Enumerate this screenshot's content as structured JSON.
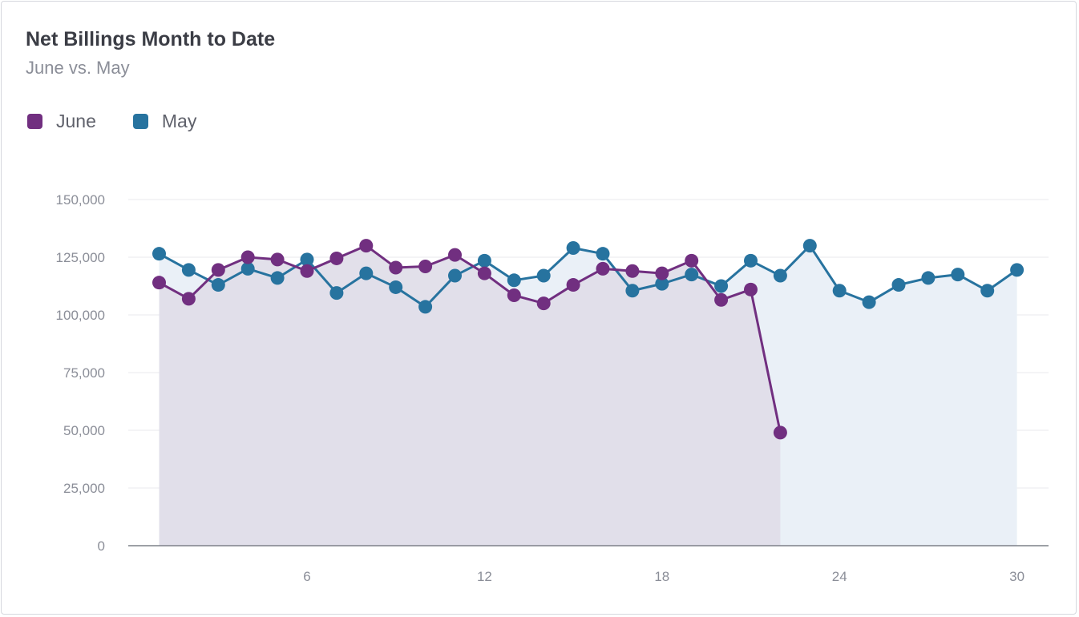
{
  "colors": {
    "june": "#712f80",
    "may": "#27739f",
    "june_fill": "#dfdde8",
    "may_fill": "#eaf0f7"
  },
  "chart_data": {
    "type": "line",
    "title": "Net Billings Month to Date",
    "subtitle": "June vs. May",
    "xlabel": "",
    "ylabel": "",
    "x_ticks": [
      6,
      12,
      18,
      24,
      30
    ],
    "y_ticks": [
      "0",
      "25,000",
      "50,000",
      "75,000",
      "100,000",
      "125,000",
      "150,000"
    ],
    "y_tick_values": [
      0,
      25000,
      50000,
      75000,
      100000,
      125000,
      150000
    ],
    "xlim": [
      0,
      31
    ],
    "ylim": [
      0,
      150000
    ],
    "grid": true,
    "legend_position": "top-left",
    "series": [
      {
        "name": "June",
        "color_key": "june",
        "x": [
          1,
          2,
          3,
          4,
          5,
          6,
          7,
          8,
          9,
          10,
          11,
          12,
          13,
          14,
          15,
          16,
          17,
          18,
          19,
          20,
          21,
          22
        ],
        "values": [
          114000,
          107000,
          119500,
          125000,
          124000,
          119000,
          124500,
          130000,
          120500,
          121000,
          126000,
          118000,
          108500,
          105000,
          113000,
          120000,
          119000,
          118000,
          123500,
          106500,
          111000,
          49000
        ]
      },
      {
        "name": "May",
        "color_key": "may",
        "x": [
          1,
          2,
          3,
          4,
          5,
          6,
          7,
          8,
          9,
          10,
          11,
          12,
          13,
          14,
          15,
          16,
          17,
          18,
          19,
          20,
          21,
          22,
          23,
          24,
          25,
          26,
          27,
          28,
          29,
          30
        ],
        "values": [
          126500,
          119500,
          113000,
          120000,
          116000,
          124000,
          109500,
          118000,
          112000,
          103500,
          117000,
          123500,
          115000,
          117000,
          129000,
          126500,
          110500,
          113500,
          117500,
          112500,
          123500,
          117000,
          130000,
          110500,
          105500,
          113000,
          116000,
          117500,
          110500,
          119500
        ]
      }
    ]
  }
}
